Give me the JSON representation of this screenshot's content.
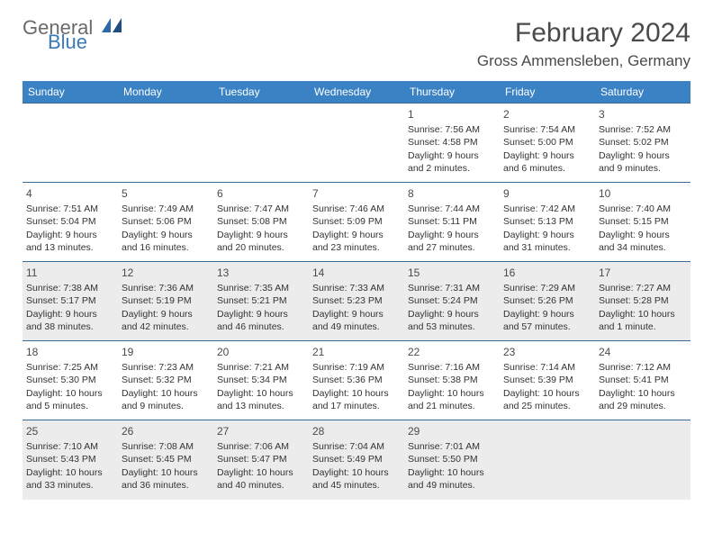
{
  "logo": {
    "text1": "General",
    "text2": "Blue"
  },
  "title": "February 2024",
  "location": "Gross Ammensleben, Germany",
  "colors": {
    "header_bg": "#3a82c4",
    "header_text": "#ffffff",
    "row_border": "#3a6a9a",
    "shaded_bg": "#ececec",
    "text": "#333333",
    "title_text": "#4a4a4a"
  },
  "weekdays": [
    "Sunday",
    "Monday",
    "Tuesday",
    "Wednesday",
    "Thursday",
    "Friday",
    "Saturday"
  ],
  "weeks": [
    [
      {
        "empty": true
      },
      {
        "empty": true
      },
      {
        "empty": true
      },
      {
        "empty": true
      },
      {
        "num": "1",
        "sunrise": "Sunrise: 7:56 AM",
        "sunset": "Sunset: 4:58 PM",
        "daylight1": "Daylight: 9 hours",
        "daylight2": "and 2 minutes."
      },
      {
        "num": "2",
        "sunrise": "Sunrise: 7:54 AM",
        "sunset": "Sunset: 5:00 PM",
        "daylight1": "Daylight: 9 hours",
        "daylight2": "and 6 minutes."
      },
      {
        "num": "3",
        "sunrise": "Sunrise: 7:52 AM",
        "sunset": "Sunset: 5:02 PM",
        "daylight1": "Daylight: 9 hours",
        "daylight2": "and 9 minutes."
      }
    ],
    [
      {
        "num": "4",
        "sunrise": "Sunrise: 7:51 AM",
        "sunset": "Sunset: 5:04 PM",
        "daylight1": "Daylight: 9 hours",
        "daylight2": "and 13 minutes."
      },
      {
        "num": "5",
        "sunrise": "Sunrise: 7:49 AM",
        "sunset": "Sunset: 5:06 PM",
        "daylight1": "Daylight: 9 hours",
        "daylight2": "and 16 minutes."
      },
      {
        "num": "6",
        "sunrise": "Sunrise: 7:47 AM",
        "sunset": "Sunset: 5:08 PM",
        "daylight1": "Daylight: 9 hours",
        "daylight2": "and 20 minutes."
      },
      {
        "num": "7",
        "sunrise": "Sunrise: 7:46 AM",
        "sunset": "Sunset: 5:09 PM",
        "daylight1": "Daylight: 9 hours",
        "daylight2": "and 23 minutes."
      },
      {
        "num": "8",
        "sunrise": "Sunrise: 7:44 AM",
        "sunset": "Sunset: 5:11 PM",
        "daylight1": "Daylight: 9 hours",
        "daylight2": "and 27 minutes."
      },
      {
        "num": "9",
        "sunrise": "Sunrise: 7:42 AM",
        "sunset": "Sunset: 5:13 PM",
        "daylight1": "Daylight: 9 hours",
        "daylight2": "and 31 minutes."
      },
      {
        "num": "10",
        "sunrise": "Sunrise: 7:40 AM",
        "sunset": "Sunset: 5:15 PM",
        "daylight1": "Daylight: 9 hours",
        "daylight2": "and 34 minutes."
      }
    ],
    [
      {
        "num": "11",
        "shaded": true,
        "sunrise": "Sunrise: 7:38 AM",
        "sunset": "Sunset: 5:17 PM",
        "daylight1": "Daylight: 9 hours",
        "daylight2": "and 38 minutes."
      },
      {
        "num": "12",
        "shaded": true,
        "sunrise": "Sunrise: 7:36 AM",
        "sunset": "Sunset: 5:19 PM",
        "daylight1": "Daylight: 9 hours",
        "daylight2": "and 42 minutes."
      },
      {
        "num": "13",
        "shaded": true,
        "sunrise": "Sunrise: 7:35 AM",
        "sunset": "Sunset: 5:21 PM",
        "daylight1": "Daylight: 9 hours",
        "daylight2": "and 46 minutes."
      },
      {
        "num": "14",
        "shaded": true,
        "sunrise": "Sunrise: 7:33 AM",
        "sunset": "Sunset: 5:23 PM",
        "daylight1": "Daylight: 9 hours",
        "daylight2": "and 49 minutes."
      },
      {
        "num": "15",
        "shaded": true,
        "sunrise": "Sunrise: 7:31 AM",
        "sunset": "Sunset: 5:24 PM",
        "daylight1": "Daylight: 9 hours",
        "daylight2": "and 53 minutes."
      },
      {
        "num": "16",
        "shaded": true,
        "sunrise": "Sunrise: 7:29 AM",
        "sunset": "Sunset: 5:26 PM",
        "daylight1": "Daylight: 9 hours",
        "daylight2": "and 57 minutes."
      },
      {
        "num": "17",
        "shaded": true,
        "sunrise": "Sunrise: 7:27 AM",
        "sunset": "Sunset: 5:28 PM",
        "daylight1": "Daylight: 10 hours",
        "daylight2": "and 1 minute."
      }
    ],
    [
      {
        "num": "18",
        "sunrise": "Sunrise: 7:25 AM",
        "sunset": "Sunset: 5:30 PM",
        "daylight1": "Daylight: 10 hours",
        "daylight2": "and 5 minutes."
      },
      {
        "num": "19",
        "sunrise": "Sunrise: 7:23 AM",
        "sunset": "Sunset: 5:32 PM",
        "daylight1": "Daylight: 10 hours",
        "daylight2": "and 9 minutes."
      },
      {
        "num": "20",
        "sunrise": "Sunrise: 7:21 AM",
        "sunset": "Sunset: 5:34 PM",
        "daylight1": "Daylight: 10 hours",
        "daylight2": "and 13 minutes."
      },
      {
        "num": "21",
        "sunrise": "Sunrise: 7:19 AM",
        "sunset": "Sunset: 5:36 PM",
        "daylight1": "Daylight: 10 hours",
        "daylight2": "and 17 minutes."
      },
      {
        "num": "22",
        "sunrise": "Sunrise: 7:16 AM",
        "sunset": "Sunset: 5:38 PM",
        "daylight1": "Daylight: 10 hours",
        "daylight2": "and 21 minutes."
      },
      {
        "num": "23",
        "sunrise": "Sunrise: 7:14 AM",
        "sunset": "Sunset: 5:39 PM",
        "daylight1": "Daylight: 10 hours",
        "daylight2": "and 25 minutes."
      },
      {
        "num": "24",
        "sunrise": "Sunrise: 7:12 AM",
        "sunset": "Sunset: 5:41 PM",
        "daylight1": "Daylight: 10 hours",
        "daylight2": "and 29 minutes."
      }
    ],
    [
      {
        "num": "25",
        "shaded": true,
        "sunrise": "Sunrise: 7:10 AM",
        "sunset": "Sunset: 5:43 PM",
        "daylight1": "Daylight: 10 hours",
        "daylight2": "and 33 minutes."
      },
      {
        "num": "26",
        "shaded": true,
        "sunrise": "Sunrise: 7:08 AM",
        "sunset": "Sunset: 5:45 PM",
        "daylight1": "Daylight: 10 hours",
        "daylight2": "and 36 minutes."
      },
      {
        "num": "27",
        "shaded": true,
        "sunrise": "Sunrise: 7:06 AM",
        "sunset": "Sunset: 5:47 PM",
        "daylight1": "Daylight: 10 hours",
        "daylight2": "and 40 minutes."
      },
      {
        "num": "28",
        "shaded": true,
        "sunrise": "Sunrise: 7:04 AM",
        "sunset": "Sunset: 5:49 PM",
        "daylight1": "Daylight: 10 hours",
        "daylight2": "and 45 minutes."
      },
      {
        "num": "29",
        "shaded": true,
        "sunrise": "Sunrise: 7:01 AM",
        "sunset": "Sunset: 5:50 PM",
        "daylight1": "Daylight: 10 hours",
        "daylight2": "and 49 minutes."
      },
      {
        "empty": true,
        "shaded": true
      },
      {
        "empty": true,
        "shaded": true
      }
    ]
  ]
}
